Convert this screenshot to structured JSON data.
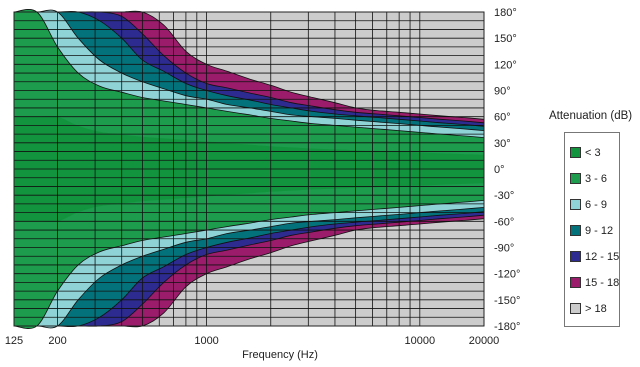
{
  "chart_data": {
    "type": "contour",
    "xlabel": "Frequency (Hz)",
    "x_scale": "log",
    "xlim": [
      125,
      20000
    ],
    "ylim": [
      -180,
      180
    ],
    "x_ticks": [
      {
        "value": 125,
        "label": "125"
      },
      {
        "value": 200,
        "label": "200"
      },
      {
        "value": 1000,
        "label": "1000"
      },
      {
        "value": 10000,
        "label": "10000"
      },
      {
        "value": 20000,
        "label": "20000"
      }
    ],
    "y_ticks": [
      {
        "value": 180,
        "label": "180°"
      },
      {
        "value": 150,
        "label": "150°"
      },
      {
        "value": 120,
        "label": "120°"
      },
      {
        "value": 90,
        "label": "90°"
      },
      {
        "value": 60,
        "label": "60°"
      },
      {
        "value": 30,
        "label": "30°"
      },
      {
        "value": 0,
        "label": "0°"
      },
      {
        "value": -30,
        "label": "-30°"
      },
      {
        "value": -60,
        "label": "-60°"
      },
      {
        "value": -90,
        "label": "-90°"
      },
      {
        "value": -120,
        "label": "-120°"
      },
      {
        "value": -150,
        "label": "-150°"
      },
      {
        "value": -180,
        "label": "-180°"
      }
    ],
    "frequencies": [
      125,
      160,
      200,
      250,
      315,
      400,
      500,
      630,
      800,
      1000,
      1250,
      1600,
      2000,
      2500,
      3150,
      4000,
      5000,
      6300,
      8000,
      10000,
      12500,
      16000,
      20000
    ],
    "legend_title": "Attenuation (dB)",
    "legend": [
      {
        "label": "< 3",
        "color": "#12943f"
      },
      {
        "label": "3 - 6",
        "color": "#1c9c4c"
      },
      {
        "label": "6 - 9",
        "color": "#8fd3d6"
      },
      {
        "label": "9 - 12",
        "color": "#04727a"
      },
      {
        "label": "12 - 15",
        "color": "#2d2b8f"
      },
      {
        "label": "15 - 18",
        "color": "#9a1c6a"
      },
      {
        "label": "> 18",
        "color": "#cccccc"
      }
    ],
    "contour_angles_deg": {
      "3dB": [
        180,
        180,
        140,
        110,
        95,
        88,
        82,
        78,
        74,
        70,
        66,
        62,
        58,
        55,
        52,
        50,
        48,
        46,
        44,
        42,
        40,
        38,
        36
      ],
      "6dB": [
        180,
        180,
        180,
        150,
        125,
        110,
        100,
        92,
        84,
        80,
        74,
        70,
        66,
        62,
        60,
        58,
        56,
        54,
        52,
        50,
        48,
        46,
        44
      ],
      "9dB": [
        180,
        180,
        180,
        180,
        170,
        150,
        125,
        112,
        98,
        90,
        84,
        79,
        74,
        70,
        66,
        63,
        61,
        59,
        57,
        55,
        53,
        51,
        49
      ],
      "12dB": [
        180,
        180,
        180,
        180,
        180,
        175,
        155,
        130,
        110,
        98,
        93,
        87,
        82,
        76,
        72,
        68,
        65,
        63,
        61,
        59,
        57,
        55,
        53
      ],
      "15dB": [
        180,
        180,
        180,
        180,
        180,
        180,
        180,
        165,
        135,
        120,
        112,
        103,
        96,
        88,
        82,
        76,
        70,
        67,
        65,
        63,
        61,
        59,
        57
      ]
    }
  }
}
